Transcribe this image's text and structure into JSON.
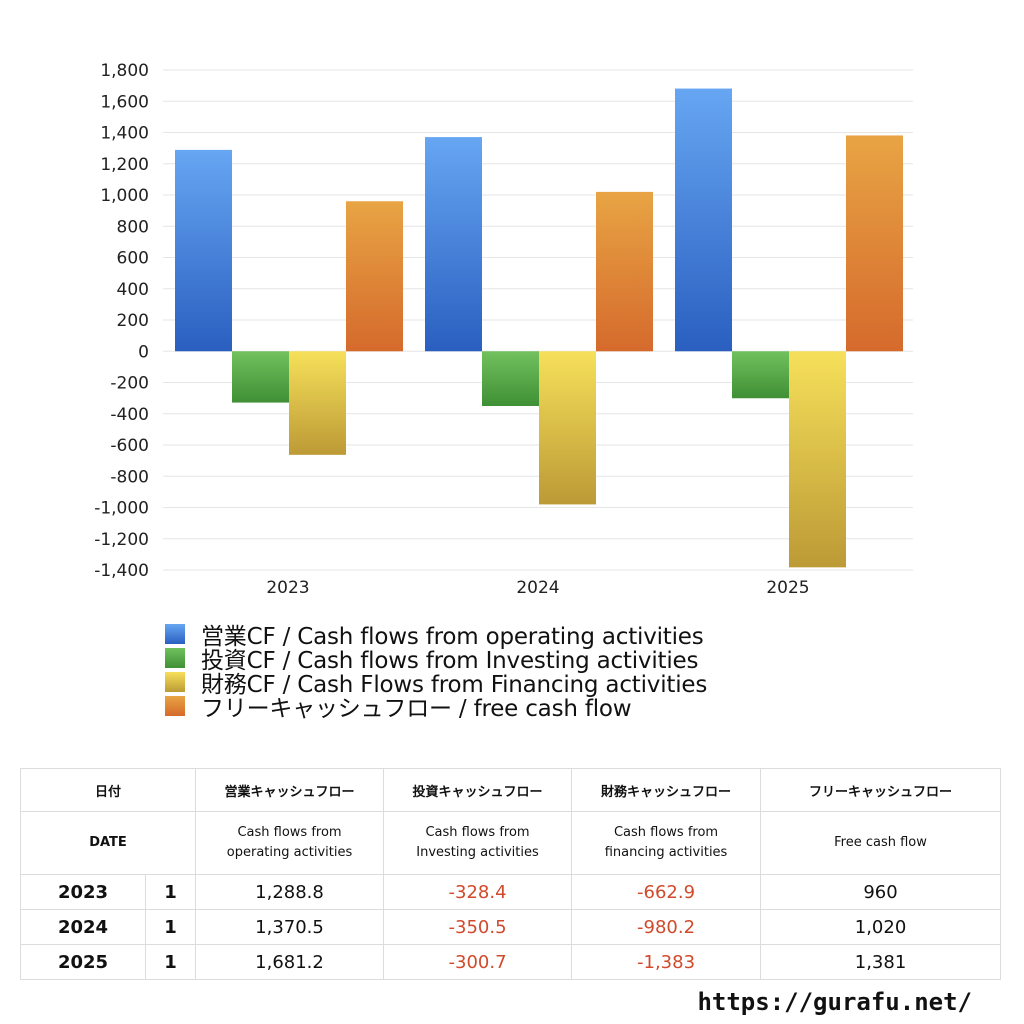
{
  "chart_data": {
    "type": "bar",
    "categories": [
      "2023",
      "2024",
      "2025"
    ],
    "series": [
      {
        "name": "営業CF / Cash flows from operating activities",
        "values": [
          1288.8,
          1370.5,
          1681.2
        ],
        "color_top": "#66a6f2",
        "color_bottom": "#2a5fc0"
      },
      {
        "name": "投資CF / Cash flows from Investing activities",
        "values": [
          -328.4,
          -350.5,
          -300.7
        ],
        "color_top": "#72c15e",
        "color_bottom": "#3f8f35"
      },
      {
        "name": "財務CF / Cash Flows from Financing activities",
        "values": [
          -662.9,
          -980.2,
          -1383
        ],
        "color_top": "#f6e05a",
        "color_bottom": "#bc9a36"
      },
      {
        "name": "フリーキャッシュフロー / free cash flow",
        "values": [
          960,
          1020,
          1381
        ],
        "color_top": "#e8a444",
        "color_bottom": "#d56a2c"
      }
    ],
    "ylim": [
      -1400,
      1800
    ],
    "yticks": [
      1800,
      1600,
      1400,
      1200,
      1000,
      800,
      600,
      400,
      200,
      0,
      -200,
      -400,
      -600,
      -800,
      -1000,
      -1200,
      -1400
    ],
    "ytick_labels": [
      "1,800",
      "1,600",
      "1,400",
      "1,200",
      "1,000",
      "800",
      "600",
      "400",
      "200",
      "0",
      "-200",
      "-400",
      "-600",
      "-800",
      "-1,000",
      "-1,200",
      "-1,400"
    ],
    "grid": true,
    "legend_position": "bottom"
  },
  "table": {
    "header_jp": [
      "日付",
      "営業キャッシュフロー",
      "投資キャッシュフロー",
      "財務キャッシュフロー",
      "フリーキャッシュフロー"
    ],
    "header_en": [
      "DATE",
      "Cash flows from operating activities",
      "Cash flows from Investing activities",
      "Cash flows from financing activities",
      "Free cash flow"
    ],
    "rows": [
      {
        "year": "2023",
        "month": "1",
        "operating": "1,288.8",
        "investing": "-328.4",
        "financing": "-662.9",
        "free": "960"
      },
      {
        "year": "2024",
        "month": "1",
        "operating": "1,370.5",
        "investing": "-350.5",
        "financing": "-980.2",
        "free": "1,020"
      },
      {
        "year": "2025",
        "month": "1",
        "operating": "1,681.2",
        "investing": "-300.7",
        "financing": "-1,383",
        "free": "1,381"
      }
    ]
  },
  "footer": {
    "url": "https://gurafu.net/"
  }
}
